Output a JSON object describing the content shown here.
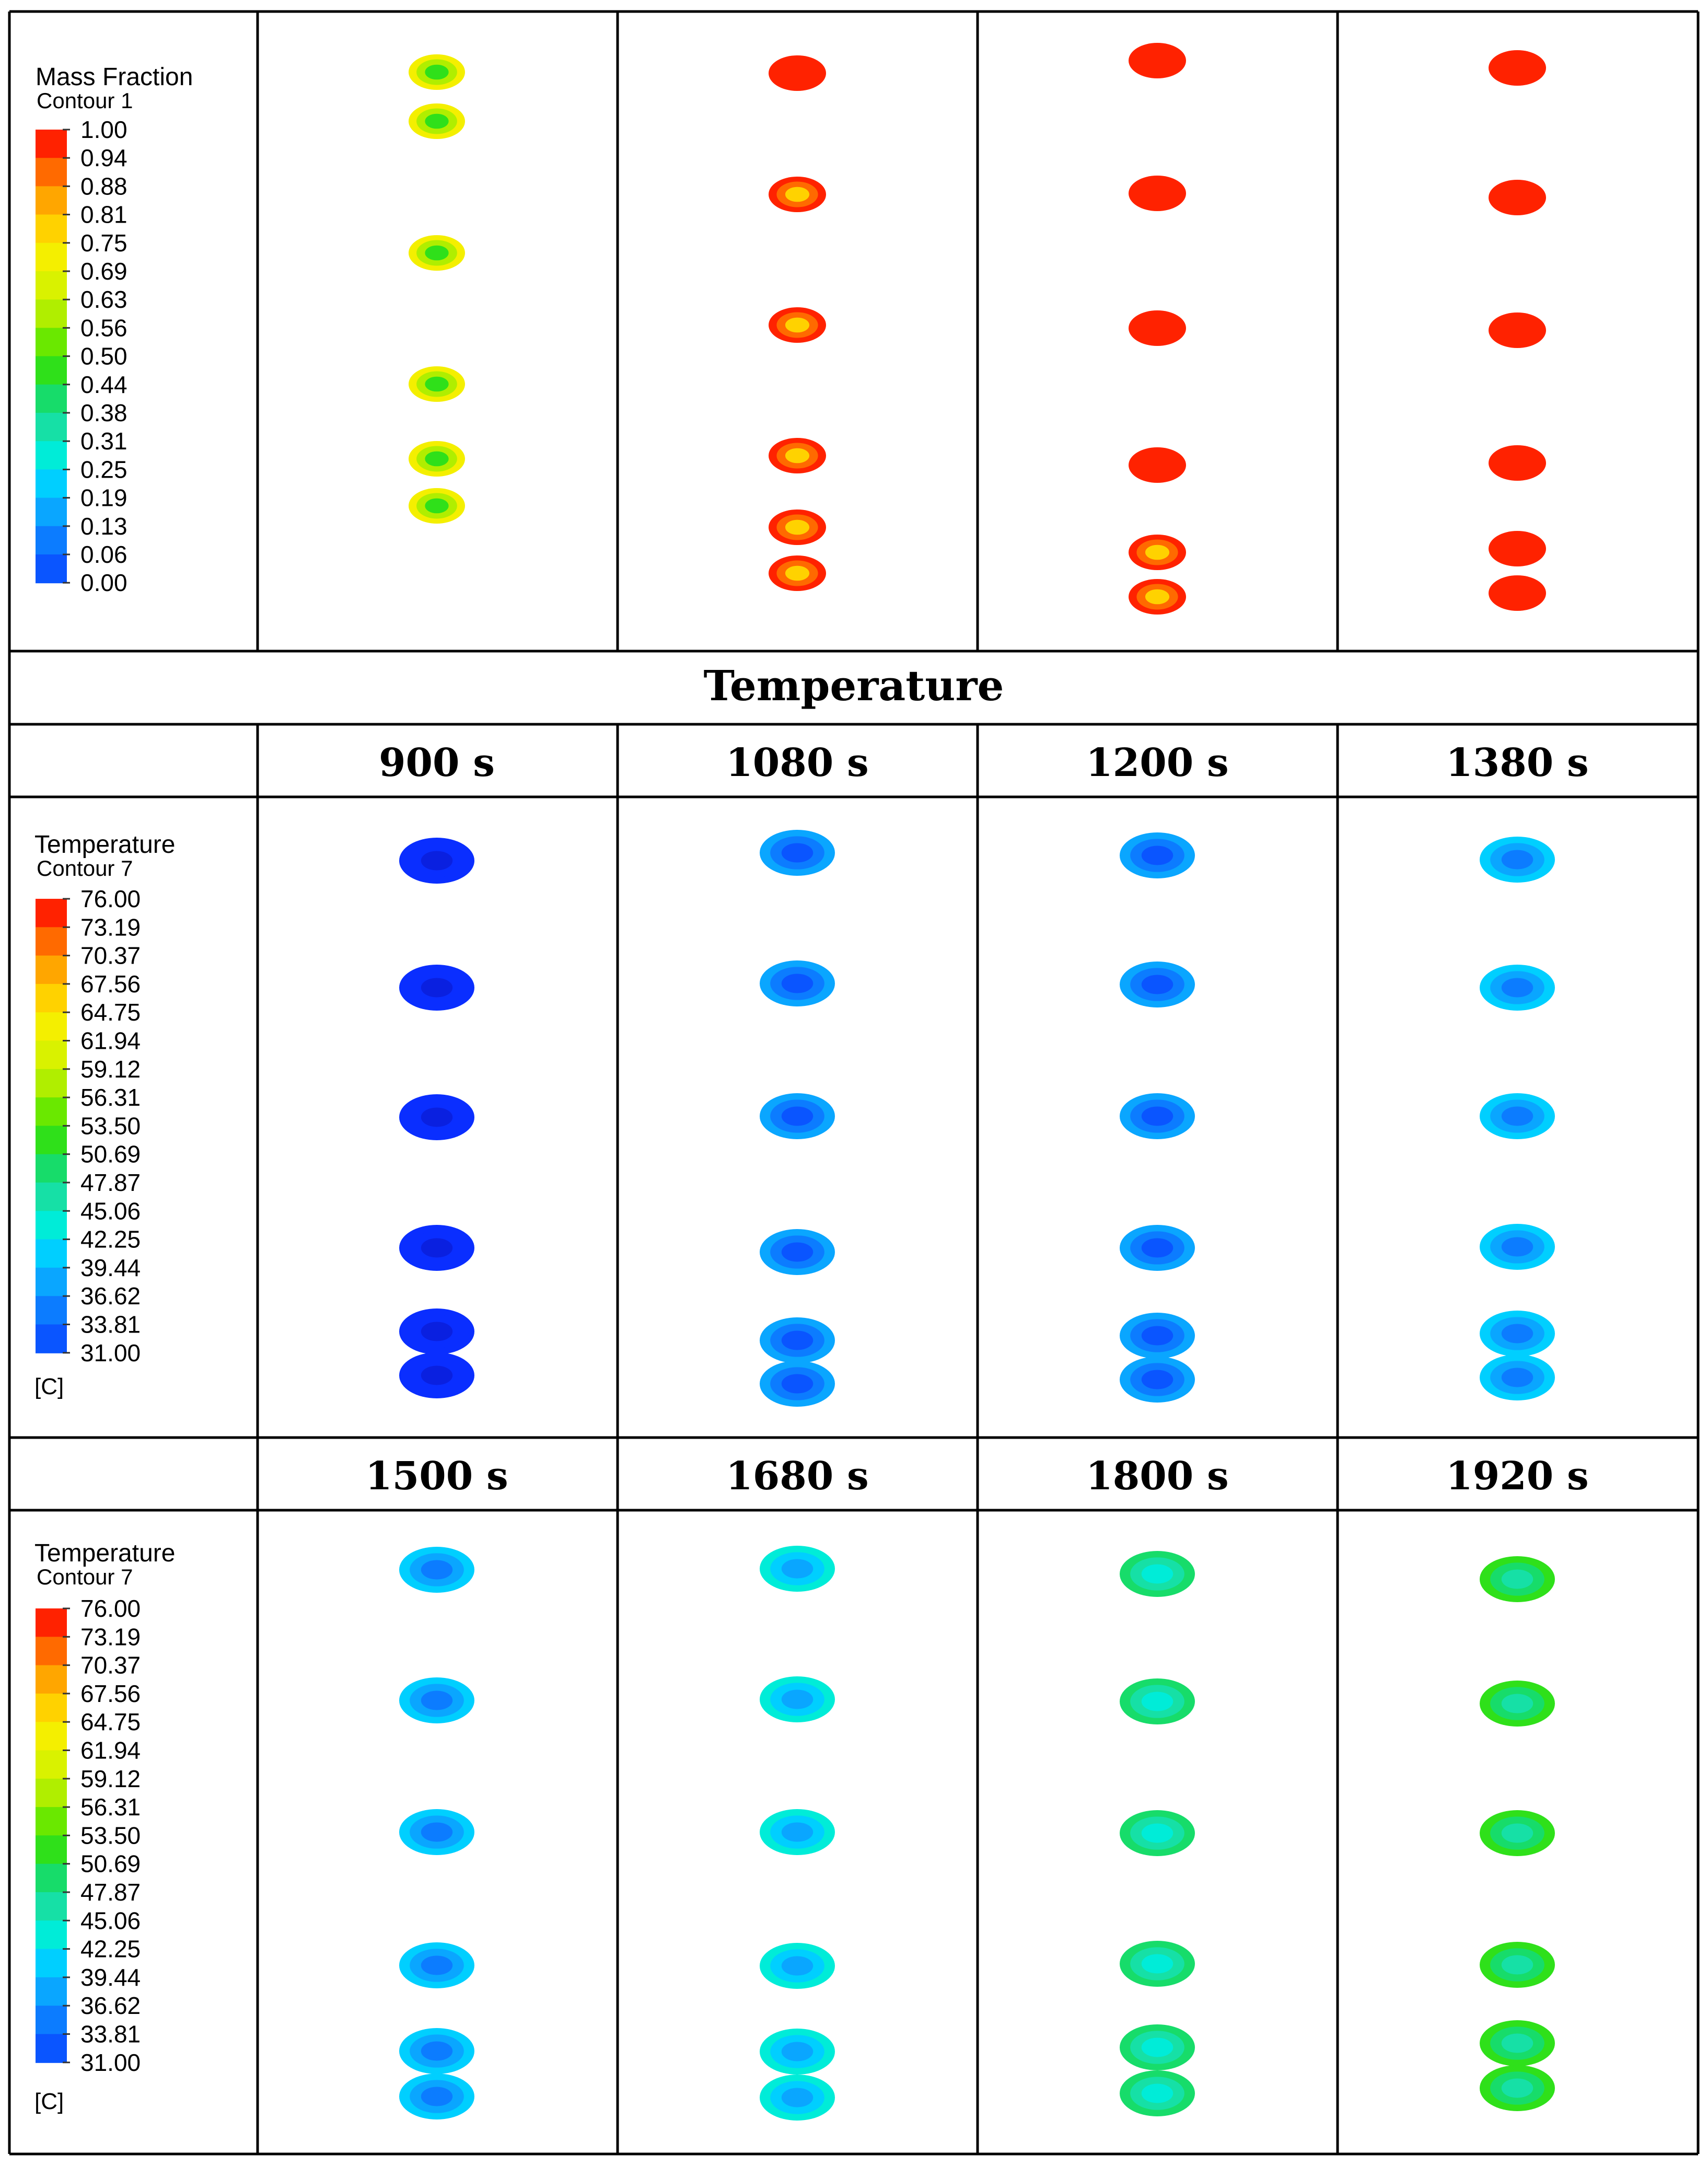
{
  "section_title": "Temperature",
  "mass_fraction_legend": {
    "title": "Mass Fraction",
    "subtitle": "Contour 1",
    "unit": "",
    "labels": [
      "1.00",
      "0.94",
      "0.88",
      "0.81",
      "0.75",
      "0.69",
      "0.63",
      "0.56",
      "0.50",
      "0.44",
      "0.38",
      "0.31",
      "0.25",
      "0.19",
      "0.13",
      "0.06",
      "0.00"
    ],
    "colors": [
      "#ff2200",
      "#ff6a00",
      "#ffa600",
      "#ffd200",
      "#f4ef00",
      "#d9f200",
      "#b0ee00",
      "#6ae800",
      "#2fe01a",
      "#17dc6a",
      "#16e0a6",
      "#00ecd8",
      "#00cfff",
      "#0aa6ff",
      "#0c7cff",
      "#0a55ff",
      "#0a2eff"
    ]
  },
  "temperature_legend_a": {
    "title": "Temperature",
    "subtitle": "Contour 7",
    "unit": "[C]",
    "labels": [
      "76.00",
      "73.19",
      "70.37",
      "67.56",
      "64.75",
      "61.94",
      "59.12",
      "56.31",
      "53.50",
      "50.69",
      "47.87",
      "45.06",
      "42.25",
      "39.44",
      "36.62",
      "33.81",
      "31.00"
    ],
    "colors": [
      "#ff2200",
      "#ff6a00",
      "#ffa600",
      "#ffd200",
      "#f4ef00",
      "#d9f200",
      "#b0ee00",
      "#6ae800",
      "#2fe01a",
      "#17dc6a",
      "#16e0a6",
      "#00ecd8",
      "#00cfff",
      "#0aa6ff",
      "#0c7cff",
      "#0a55ff",
      "#0a2eff"
    ]
  },
  "temperature_legend_b": {
    "title": "Temperature",
    "subtitle": "Contour 7",
    "unit": "[C]",
    "labels": [
      "76.00",
      "73.19",
      "70.37",
      "67.56",
      "64.75",
      "61.94",
      "59.12",
      "56.31",
      "53.50",
      "50.69",
      "47.87",
      "45.06",
      "42.25",
      "39.44",
      "36.62",
      "33.81",
      "31.00"
    ],
    "colors": [
      "#ff2200",
      "#ff6a00",
      "#ffa600",
      "#ffd200",
      "#f4ef00",
      "#d9f200",
      "#b0ee00",
      "#6ae800",
      "#2fe01a",
      "#17dc6a",
      "#16e0a6",
      "#00ecd8",
      "#00cfff",
      "#0aa6ff",
      "#0c7cff",
      "#0a55ff",
      "#0a2eff"
    ]
  },
  "temperature_times_row1": [
    "900 s",
    "1080 s",
    "1200 s",
    "1380 s"
  ],
  "temperature_times_row2": [
    "1500 s",
    "1680 s",
    "1800 s",
    "1920 s"
  ],
  "panels": {
    "mass_fraction": [
      {
        "outer": "#f4ef00",
        "inner": "#b0ee00",
        "core": "#2fe01a"
      },
      {
        "outer": "#ff2200",
        "inner": "#ff6a00",
        "core": "#ffd200"
      },
      {
        "outer": "#ff2200",
        "inner": "#ff6a00",
        "core": "#ffd200"
      },
      {
        "outer": "#ff2200",
        "inner": "#ff2200",
        "core": "#ff2200"
      }
    ],
    "temperature_row1": [
      {
        "outer": "#0a2eff",
        "inner": "#0a2eff",
        "core": "#0a20e0"
      },
      {
        "outer": "#0aa6ff",
        "inner": "#0c7cff",
        "core": "#0a55ff"
      },
      {
        "outer": "#0aa6ff",
        "inner": "#0c7cff",
        "core": "#0a55ff"
      },
      {
        "outer": "#00cfff",
        "inner": "#0aa6ff",
        "core": "#0c7cff"
      }
    ],
    "temperature_row2": [
      {
        "outer": "#00cfff",
        "inner": "#0aa6ff",
        "core": "#0c7cff"
      },
      {
        "outer": "#00ecd8",
        "inner": "#00cfff",
        "core": "#0aa6ff"
      },
      {
        "outer": "#17dc6a",
        "inner": "#16e0a6",
        "core": "#00ecd8"
      },
      {
        "outer": "#2fe01a",
        "inner": "#17dc6a",
        "core": "#16e0a6"
      }
    ]
  }
}
